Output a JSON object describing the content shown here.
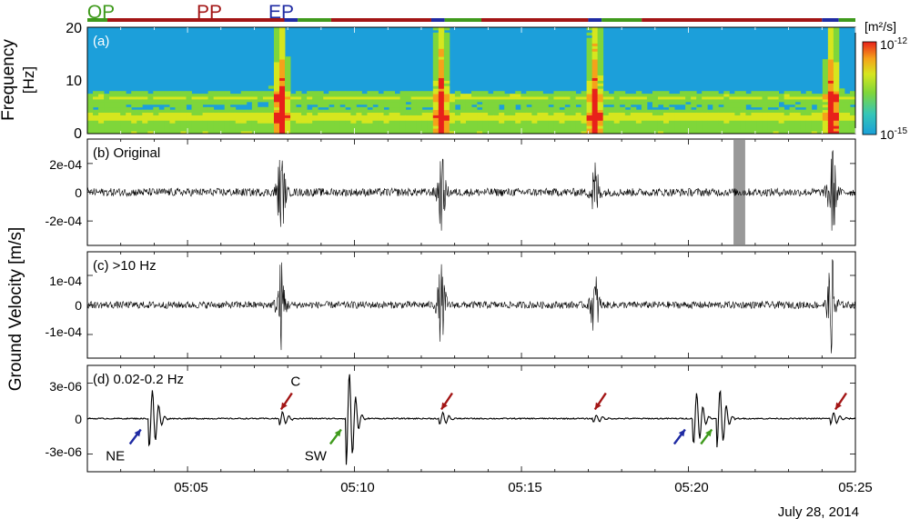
{
  "chart_data": {
    "type": "multi-panel seismic figure",
    "x_ticks": [
      "05:05",
      "05:10",
      "05:15",
      "05:20",
      "05:25"
    ],
    "date_label": "July 28, 2014",
    "x_range_minutes": [
      2.0,
      25.0
    ],
    "phases": {
      "labels": {
        "qp": "QP",
        "pp": "PP",
        "ep": "EP"
      },
      "colors": {
        "QP": "#3f9a1c",
        "PP": "#a31515",
        "EP": "#1f2ba3"
      },
      "segments": [
        {
          "phase": "QP",
          "start": 2.0,
          "end": 2.6
        },
        {
          "phase": "PP",
          "start": 2.6,
          "end": 7.9
        },
        {
          "phase": "EP",
          "start": 7.9,
          "end": 8.3
        },
        {
          "phase": "QP",
          "start": 8.3,
          "end": 9.3
        },
        {
          "phase": "PP",
          "start": 9.3,
          "end": 12.3
        },
        {
          "phase": "EP",
          "start": 12.3,
          "end": 12.7
        },
        {
          "phase": "QP",
          "start": 12.7,
          "end": 13.8
        },
        {
          "phase": "PP",
          "start": 13.8,
          "end": 17.0
        },
        {
          "phase": "EP",
          "start": 17.0,
          "end": 17.4
        },
        {
          "phase": "QP",
          "start": 17.4,
          "end": 18.6
        },
        {
          "phase": "PP",
          "start": 18.6,
          "end": 24.0
        },
        {
          "phase": "EP",
          "start": 24.0,
          "end": 24.5
        },
        {
          "phase": "QP",
          "start": 24.5,
          "end": 25.0
        }
      ]
    },
    "panels": [
      {
        "id": "a",
        "title": "(a)",
        "ylabel_line1": "Frequency",
        "ylabel_line2": "[Hz]",
        "yticks": [
          "20",
          "10",
          "0"
        ],
        "ylim": [
          0,
          20
        ],
        "colorbar": {
          "unit": "[m²/s]",
          "max_label": "10",
          "max_exp": "-12",
          "min_label": "10",
          "min_exp": "-15"
        },
        "bursts_minutes": [
          7.8,
          12.6,
          17.2,
          24.3
        ],
        "bands_hz": [
          3.2,
          6.8
        ]
      },
      {
        "id": "b",
        "title": "(b) Original",
        "yticks": [
          "2e-04",
          "0",
          "-2e-04"
        ],
        "ylim": [
          -0.00037,
          0.00037
        ],
        "tick_values": [
          0.0002,
          0,
          -0.0002
        ],
        "shaded_minutes": [
          21.35,
          21.7
        ],
        "bursts": [
          {
            "t": 7.8,
            "amp": 0.00027
          },
          {
            "t": 12.6,
            "amp": 0.00025
          },
          {
            "t": 17.2,
            "amp": 0.00022
          },
          {
            "t": 24.3,
            "amp": 0.00032
          }
        ],
        "noise_amp": 2.8e-05
      },
      {
        "id": "c",
        "title": "(c) >10 Hz",
        "yticks": [
          "1e-04",
          "0",
          "-1e-04"
        ],
        "ylim": [
          -0.00018,
          0.00018
        ],
        "tick_values": [
          0.0001,
          0,
          -0.0001
        ],
        "bursts": [
          {
            "t": 7.8,
            "amp": 0.00015
          },
          {
            "t": 12.6,
            "amp": 0.00013
          },
          {
            "t": 17.2,
            "amp": 0.00011
          },
          {
            "t": 24.3,
            "amp": 0.00017
          }
        ],
        "noise_amp": 1.2e-05
      },
      {
        "id": "d",
        "title": "(d) 0.02-0.2 Hz",
        "yticks": [
          "3e-06",
          "0",
          "-3e-06"
        ],
        "ylim": [
          -4.5e-06,
          4.5e-06
        ],
        "tick_values": [
          3e-06,
          0,
          -3e-06
        ],
        "events": [
          {
            "t": 3.9,
            "amp": 2.5e-06
          },
          {
            "t": 7.8,
            "amp": 6e-07
          },
          {
            "t": 9.8,
            "amp": 4e-06
          },
          {
            "t": 12.6,
            "amp": 5e-07
          },
          {
            "t": 17.2,
            "amp": 3e-07
          },
          {
            "t": 20.2,
            "amp": 2.2e-06
          },
          {
            "t": 20.9,
            "amp": 2.5e-06
          },
          {
            "t": 24.3,
            "amp": 5e-07
          }
        ],
        "annotations": [
          {
            "text": "NE",
            "t": 3.6,
            "color": "#1f2ba3"
          },
          {
            "text": "C",
            "t": 7.8,
            "color": "#a31515"
          },
          {
            "text": "SW",
            "t": 9.6,
            "color": "#3f9a1c"
          },
          {
            "text": "",
            "t": 12.6,
            "color": "#a31515"
          },
          {
            "text": "",
            "t": 17.2,
            "color": "#a31515"
          },
          {
            "text": "",
            "t": 19.9,
            "color": "#1f2ba3"
          },
          {
            "text": "",
            "t": 20.7,
            "color": "#3f9a1c"
          },
          {
            "text": "",
            "t": 24.4,
            "color": "#a31515"
          }
        ]
      }
    ],
    "shared_ylabel": "Ground Velocity [m/s]"
  }
}
